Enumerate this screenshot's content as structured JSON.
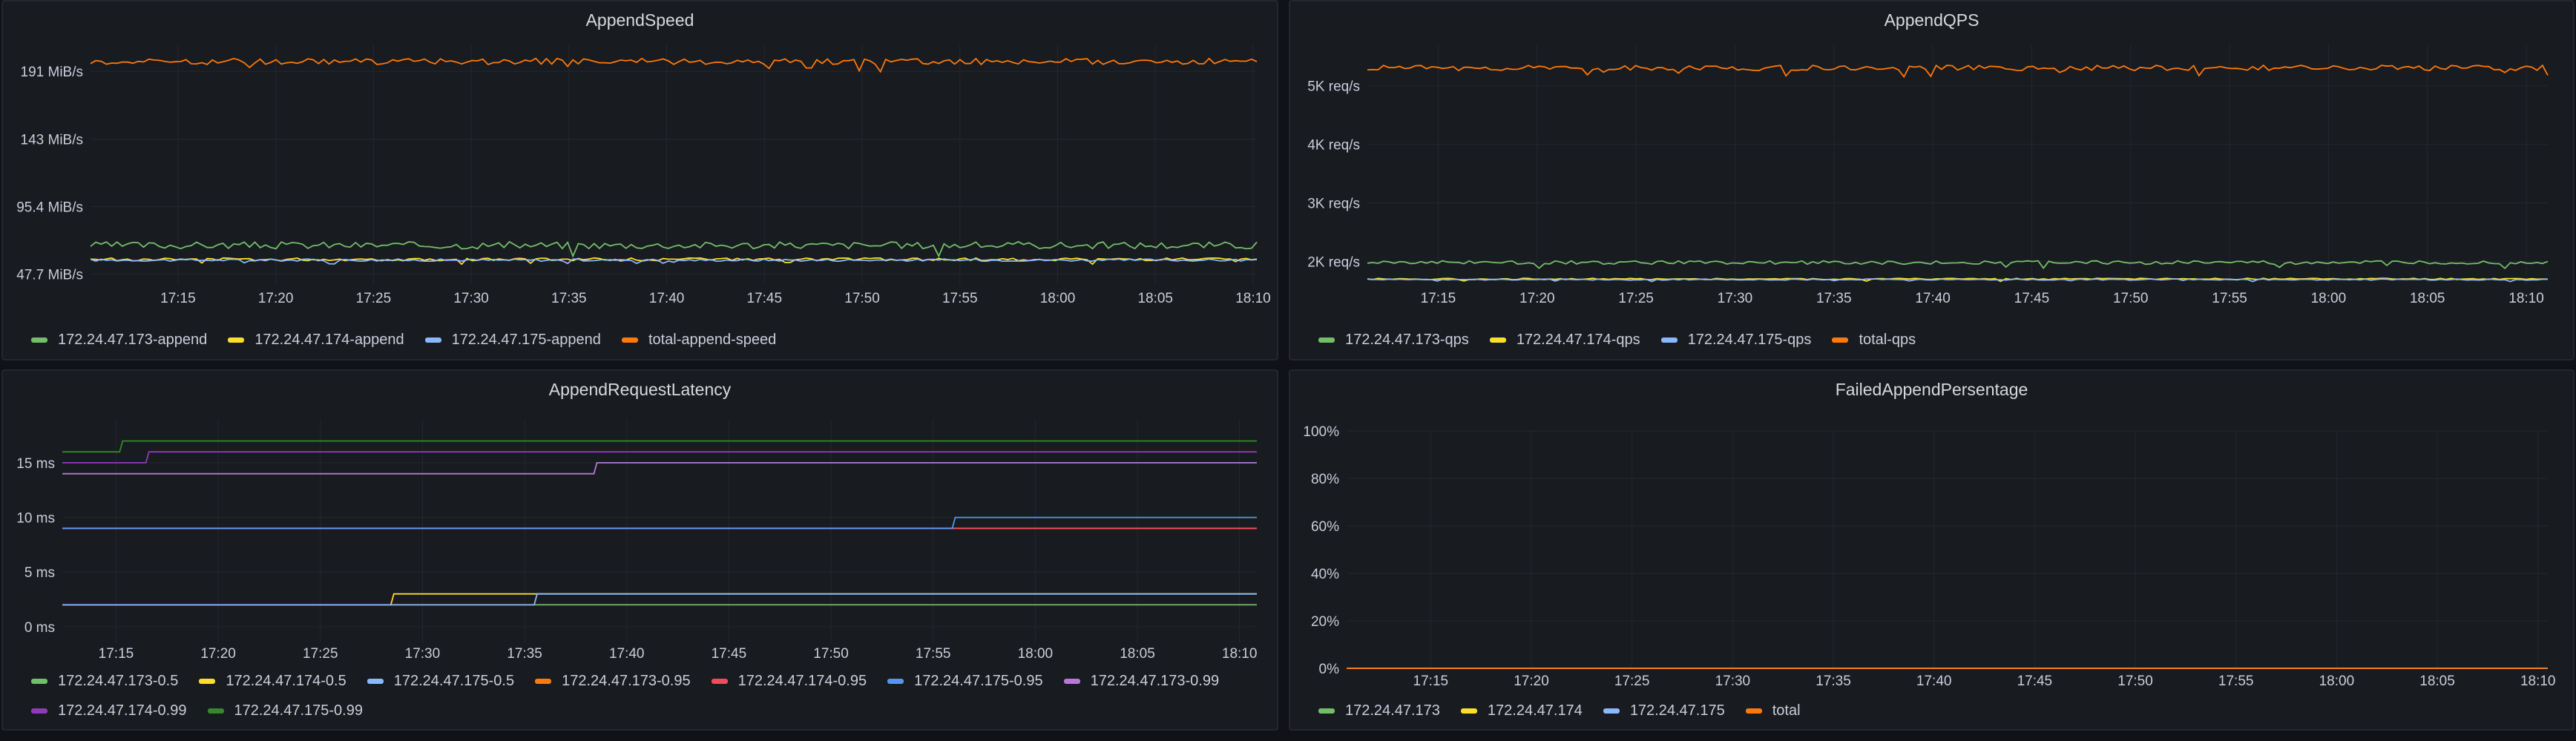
{
  "chart_data": [
    {
      "type": "line",
      "title": "AppendSpeed",
      "x": [
        "17:15",
        "17:20",
        "17:25",
        "17:30",
        "17:35",
        "17:40",
        "17:45",
        "17:50",
        "17:55",
        "18:00",
        "18:05",
        "18:10"
      ],
      "ylim": [
        40,
        210
      ],
      "y_ticks": [
        {
          "value": 47.7,
          "label": "47.7 MiB/s"
        },
        {
          "value": 95.4,
          "label": "95.4 MiB/s"
        },
        {
          "value": 143,
          "label": "143 MiB/s"
        },
        {
          "value": 191,
          "label": "191 MiB/s"
        }
      ],
      "grid": true,
      "legend": "bottom",
      "series": [
        {
          "name": "172.24.47.173-append",
          "color": "#73bf69",
          "start": 68,
          "end": 68,
          "noise": 2.5,
          "flat": false
        },
        {
          "name": "172.24.47.174-append",
          "color": "#fade2a",
          "start": 58,
          "end": 58,
          "noise": 1.0,
          "flat": false
        },
        {
          "name": "172.24.47.175-append",
          "color": "#8ab8ff",
          "start": 57.5,
          "end": 57.5,
          "noise": 0.8,
          "flat": false
        },
        {
          "name": "total-append-speed",
          "color": "#ff780a",
          "start": 198,
          "end": 198,
          "noise": 2.2,
          "flat": false
        }
      ]
    },
    {
      "type": "line",
      "title": "AppendQPS",
      "x": [
        "17:15",
        "17:20",
        "17:25",
        "17:30",
        "17:35",
        "17:40",
        "17:45",
        "17:50",
        "17:55",
        "18:00",
        "18:05",
        "18:10"
      ],
      "ylim": [
        1600,
        5700
      ],
      "y_ticks": [
        {
          "value": 2000,
          "label": "2K req/s"
        },
        {
          "value": 3000,
          "label": "3K req/s"
        },
        {
          "value": 4000,
          "label": "4K req/s"
        },
        {
          "value": 5000,
          "label": "5K req/s"
        }
      ],
      "grid": true,
      "legend": "bottom",
      "series": [
        {
          "name": "172.24.47.173-qps",
          "color": "#73bf69",
          "start": 1980,
          "end": 1980,
          "noise": 30,
          "flat": false
        },
        {
          "name": "172.24.47.174-qps",
          "color": "#fade2a",
          "start": 1700,
          "end": 1700,
          "noise": 12,
          "flat": false
        },
        {
          "name": "172.24.47.175-qps",
          "color": "#8ab8ff",
          "start": 1690,
          "end": 1690,
          "noise": 10,
          "flat": false
        },
        {
          "name": "total-qps",
          "color": "#ff780a",
          "start": 5300,
          "end": 5300,
          "noise": 45,
          "flat": false
        }
      ]
    },
    {
      "type": "line",
      "title": "AppendRequestLatency",
      "x": [
        "17:15",
        "17:20",
        "17:25",
        "17:30",
        "17:35",
        "17:40",
        "17:45",
        "17:50",
        "17:55",
        "18:00",
        "18:05",
        "18:10"
      ],
      "ylim": [
        -1.5,
        19
      ],
      "y_ticks": [
        {
          "value": 0,
          "label": "0 ms"
        },
        {
          "value": 5,
          "label": "5 ms"
        },
        {
          "value": 10,
          "label": "10 ms"
        },
        {
          "value": 15,
          "label": "15 ms"
        }
      ],
      "grid": true,
      "legend": "bottom",
      "series": [
        {
          "name": "172.24.47.173-0.5",
          "color": "#73bf69",
          "start": 2,
          "end": 2,
          "flat": true
        },
        {
          "name": "172.24.47.174-0.5",
          "color": "#fade2a",
          "start": 2,
          "end": 3,
          "step_at": 0.275,
          "flat": true
        },
        {
          "name": "172.24.47.175-0.5",
          "color": "#8ab8ff",
          "start": 2,
          "end": 3,
          "step_at": 0.395,
          "flat": true
        },
        {
          "name": "172.24.47.173-0.95",
          "color": "#ff780a",
          "start": 9,
          "end": 9,
          "flat": true
        },
        {
          "name": "172.24.47.174-0.95",
          "color": "#f2495c",
          "start": 9,
          "end": 9,
          "flat": true
        },
        {
          "name": "172.24.47.175-0.95",
          "color": "#5794f2",
          "start": 9,
          "end": 10,
          "step_at": 0.745,
          "flat": true
        },
        {
          "name": "172.24.47.173-0.99",
          "color": "#b877d9",
          "start": 14,
          "end": 15,
          "step_at": 0.445,
          "flat": true
        },
        {
          "name": "172.24.47.174-0.99",
          "color": "#8f3bb8",
          "start": 15,
          "end": 16,
          "step_at": 0.07,
          "flat": true
        },
        {
          "name": "172.24.47.175-0.99",
          "color": "#37872d",
          "start": 16,
          "end": 17,
          "step_at": 0.048,
          "flat": true
        }
      ]
    },
    {
      "type": "line",
      "title": "FailedAppendPersentage",
      "x": [
        "17:15",
        "17:20",
        "17:25",
        "17:30",
        "17:35",
        "17:40",
        "17:45",
        "17:50",
        "17:55",
        "18:00",
        "18:05",
        "18:10"
      ],
      "ylim": [
        0,
        100
      ],
      "y_ticks": [
        {
          "value": 0,
          "label": "0%"
        },
        {
          "value": 20,
          "label": "20%"
        },
        {
          "value": 40,
          "label": "40%"
        },
        {
          "value": 60,
          "label": "60%"
        },
        {
          "value": 80,
          "label": "80%"
        },
        {
          "value": 100,
          "label": "100%"
        }
      ],
      "grid": true,
      "legend": "bottom",
      "series": [
        {
          "name": "172.24.47.173",
          "color": "#73bf69",
          "start": 0,
          "end": 0,
          "flat": true
        },
        {
          "name": "172.24.47.174",
          "color": "#fade2a",
          "start": 0,
          "end": 0,
          "flat": true
        },
        {
          "name": "172.24.47.175",
          "color": "#8ab8ff",
          "start": 0,
          "end": 0,
          "flat": true
        },
        {
          "name": "total",
          "color": "#ff780a",
          "start": 0,
          "end": 0,
          "flat": true
        }
      ]
    }
  ]
}
